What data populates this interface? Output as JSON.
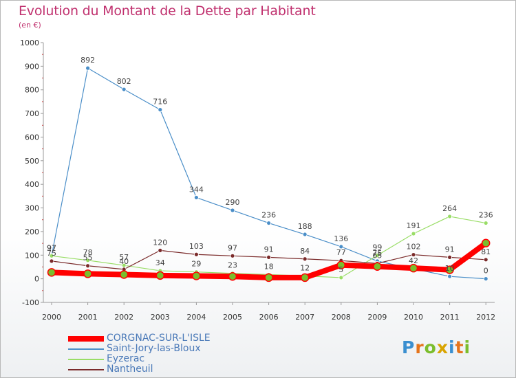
{
  "header": {
    "title": "Evolution du Montant de la Dette par Habitant",
    "unit": "(en €)"
  },
  "logo": {
    "letters": [
      "P",
      "r",
      "o",
      "x",
      "i",
      "t",
      "i"
    ]
  },
  "chart_data": {
    "type": "line",
    "title": "Evolution du Montant de la Dette par Habitant",
    "subtitle": "(en €)",
    "x": [
      "2000",
      "2001",
      "2002",
      "2003",
      "2004",
      "2005",
      "2006",
      "2007",
      "2008",
      "2009",
      "2010",
      "2011",
      "2012"
    ],
    "ylim": [
      -100,
      1000
    ],
    "yticks": [
      -100,
      0,
      100,
      200,
      300,
      400,
      500,
      600,
      700,
      800,
      900,
      1000
    ],
    "grid": false,
    "legend": "bottom-left",
    "series": [
      {
        "name": "CORGNAC-SUR-L'ISLE",
        "color": "#ff0000",
        "labels": false,
        "values": [
          27,
          21,
          18,
          14,
          12,
          10,
          5,
          5,
          58,
          52,
          45,
          38,
          151
        ]
      },
      {
        "name": "Saint-Jory-las-Bloux",
        "color": "#4a8ec8",
        "labels": true,
        "values": [
          97,
          892,
          802,
          716,
          344,
          290,
          236,
          188,
          136,
          75,
          42,
          10,
          0
        ]
      },
      {
        "name": "Eyzerac",
        "color": "#99dd66",
        "labels": true,
        "values": [
          97,
          78,
          57,
          34,
          29,
          23,
          18,
          12,
          5,
          99,
          191,
          264,
          236
        ]
      },
      {
        "name": "Nantheuil",
        "color": "#7a2a2a",
        "labels": true,
        "values": [
          75,
          55,
          40,
          120,
          103,
          97,
          91,
          84,
          77,
          65,
          102,
          91,
          81
        ]
      }
    ]
  }
}
